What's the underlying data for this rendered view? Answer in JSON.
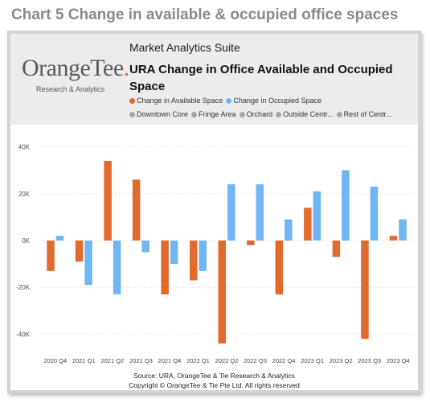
{
  "heading": "Chart 5 Change in available & occupied office spaces",
  "header": {
    "logo_main": "OrangeTee",
    "logo_accent": ".",
    "logo_sub": "Research & Analytics",
    "suite": "Market Analytics Suite",
    "chart_title": "URA Change in Office Available and Occupied Space"
  },
  "legend_series": [
    {
      "label": "Change in Available Space",
      "color": "#e06b2c"
    },
    {
      "label": "Change in Occupied Space",
      "color": "#6fb6f3"
    }
  ],
  "legend_regions": [
    {
      "label": "Downtown Core",
      "color": "#a6a6a6"
    },
    {
      "label": "Fringe Area",
      "color": "#a6a6a6"
    },
    {
      "label": "Orchard",
      "color": "#a6a6a6"
    },
    {
      "label": "Outside Centr...",
      "color": "#a6a6a6"
    },
    {
      "label": "Rest of Centr...",
      "color": "#a6a6a6"
    }
  ],
  "source": {
    "line1": "Source: URA, OrangeTee & Tie Research & Analytics",
    "line2": "Copyright © OrangeTee & Tie Pte Ltd. All rights reserved"
  },
  "chart_data": {
    "type": "bar",
    "categories": [
      "2020 Q4",
      "2021 Q1",
      "2021 Q2",
      "2021 Q3",
      "2021 Q4",
      "2022 Q1",
      "2022 Q2",
      "2022 Q3",
      "2022 Q4",
      "2023 Q1",
      "2023 Q2",
      "2023 Q3",
      "2023 Q4"
    ],
    "series": [
      {
        "name": "Change in Available Space",
        "color": "#e06b2c",
        "values": [
          -13000,
          -9000,
          34000,
          26000,
          -23000,
          -17000,
          -44000,
          -2000,
          -23000,
          14000,
          -7000,
          -42000,
          2000
        ]
      },
      {
        "name": "Change in Occupied Space",
        "color": "#6fb6f3",
        "values": [
          2000,
          -19000,
          -23000,
          -5000,
          -10000,
          -13000,
          24000,
          24000,
          9000,
          21000,
          30000,
          23000,
          9000
        ]
      }
    ],
    "ylim": [
      -45000,
      45000
    ],
    "yticks": [
      40000,
      20000,
      0,
      -20000,
      -40000
    ],
    "ytick_labels": [
      "40K",
      "20K",
      "0K",
      "-20K",
      "-40K"
    ],
    "grid": true
  }
}
